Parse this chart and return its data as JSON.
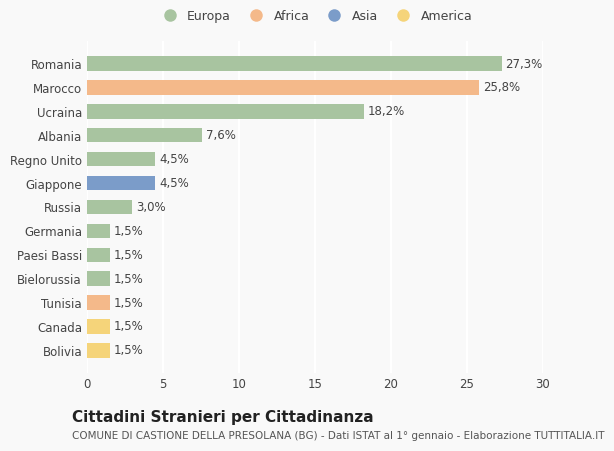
{
  "countries": [
    "Romania",
    "Marocco",
    "Ucraina",
    "Albania",
    "Regno Unito",
    "Giappone",
    "Russia",
    "Germania",
    "Paesi Bassi",
    "Bielorussia",
    "Tunisia",
    "Canada",
    "Bolivia"
  ],
  "values": [
    27.3,
    25.8,
    18.2,
    7.6,
    4.5,
    4.5,
    3.0,
    1.5,
    1.5,
    1.5,
    1.5,
    1.5,
    1.5
  ],
  "labels": [
    "27,3%",
    "25,8%",
    "18,2%",
    "7,6%",
    "4,5%",
    "4,5%",
    "3,0%",
    "1,5%",
    "1,5%",
    "1,5%",
    "1,5%",
    "1,5%",
    "1,5%"
  ],
  "colors": [
    "#a8c4a0",
    "#f4b98a",
    "#a8c4a0",
    "#a8c4a0",
    "#a8c4a0",
    "#7b9cc9",
    "#a8c4a0",
    "#a8c4a0",
    "#a8c4a0",
    "#a8c4a0",
    "#f4b98a",
    "#f5d47a",
    "#f5d47a"
  ],
  "legend_labels": [
    "Europa",
    "Africa",
    "Asia",
    "America"
  ],
  "legend_colors": [
    "#a8c4a0",
    "#f4b98a",
    "#7b9cc9",
    "#f5d47a"
  ],
  "title": "Cittadini Stranieri per Cittadinanza",
  "subtitle": "COMUNE DI CASTIONE DELLA PRESOLANA (BG) - Dati ISTAT al 1° gennaio - Elaborazione TUTTITALIA.IT",
  "xlim": [
    0,
    30
  ],
  "xticks": [
    0,
    5,
    10,
    15,
    20,
    25,
    30
  ],
  "background_color": "#f9f9f9",
  "grid_color": "#ffffff",
  "bar_height": 0.6,
  "label_fontsize": 8.5,
  "tick_fontsize": 8.5,
  "title_fontsize": 11,
  "subtitle_fontsize": 7.5
}
